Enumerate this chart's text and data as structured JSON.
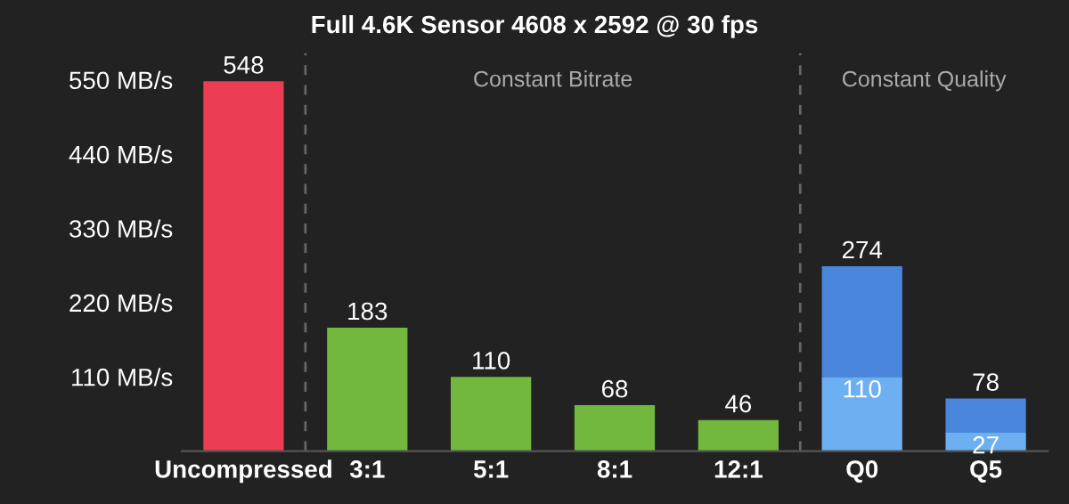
{
  "chart_data": {
    "type": "bar",
    "stacked": true,
    "title": "Full 4.6K Sensor 4608 x 2592 @ 30 fps",
    "categories": [
      "Uncompressed",
      "3:1",
      "5:1",
      "8:1",
      "12:1",
      "Q0",
      "Q5"
    ],
    "series": [
      {
        "colors": [
          "#ec3d55",
          "#72b83e",
          "#72b83e",
          "#72b83e",
          "#72b83e",
          "#6cb0f2",
          "#6cb0f2"
        ],
        "values": [
          548,
          183,
          110,
          68,
          46,
          110,
          27
        ],
        "value_labels": [
          null,
          null,
          null,
          null,
          null,
          "110",
          "27"
        ]
      },
      {
        "color": "#4a86dc",
        "values": [
          null,
          null,
          null,
          null,
          null,
          164,
          51
        ]
      }
    ],
    "totals": [
      "548",
      "183",
      "110",
      "68",
      "46",
      "274",
      "78"
    ],
    "ylim": [
      0,
      590
    ],
    "yticks": [
      {
        "value": 110,
        "label": "110 MB/s"
      },
      {
        "value": 220,
        "label": "220 MB/s"
      },
      {
        "value": 330,
        "label": "330 MB/s"
      },
      {
        "value": 440,
        "label": "440 MB/s"
      },
      {
        "value": 550,
        "label": "550 MB/s"
      }
    ],
    "annotations": [
      "Constant Bitrate",
      "Constant Quality"
    ],
    "grid": false,
    "legend": false
  }
}
